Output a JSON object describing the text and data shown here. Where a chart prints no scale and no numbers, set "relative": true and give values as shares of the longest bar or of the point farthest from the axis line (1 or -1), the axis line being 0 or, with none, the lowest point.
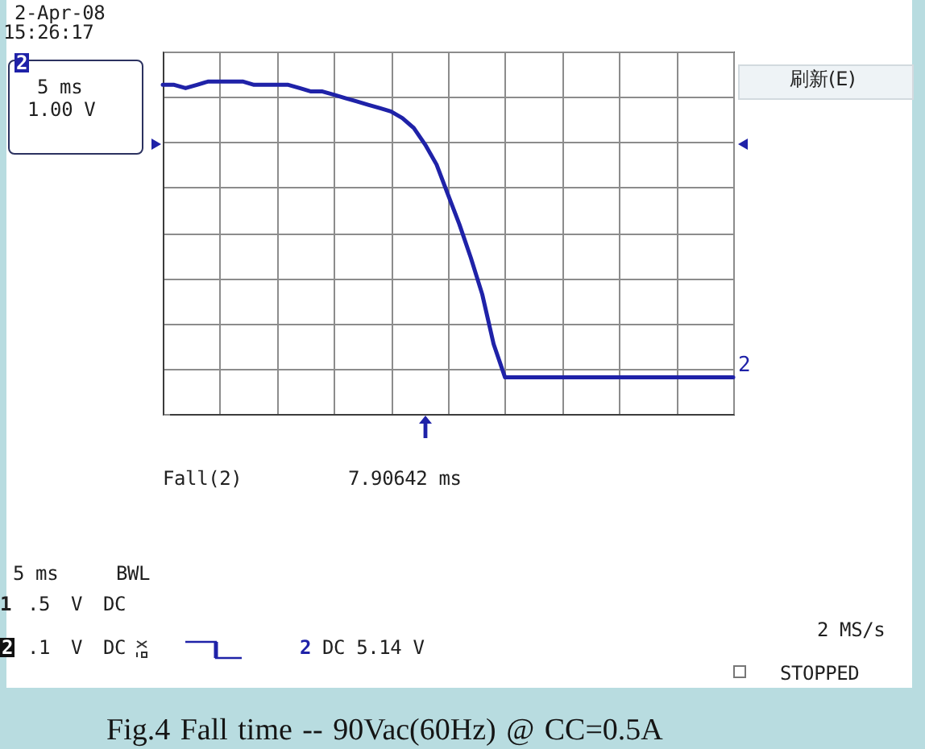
{
  "chart_data": {
    "type": "line",
    "relative": true,
    "categories": [
      null,
      null,
      null,
      null,
      null,
      null,
      null,
      null,
      null,
      null,
      null,
      null,
      null,
      null,
      null,
      null,
      null,
      null,
      null,
      null,
      null,
      null,
      null,
      null,
      null,
      null,
      null,
      null,
      null,
      null,
      null,
      null,
      null,
      null,
      null,
      null,
      null,
      null,
      null,
      null,
      null,
      null,
      null,
      null,
      null,
      null,
      null,
      null,
      null,
      null,
      null
    ],
    "series": [
      {
        "name": "2",
        "color": "#1f22a8",
        "values": [
          0.99,
          0.99,
          0.98,
          0.99,
          1,
          1,
          1,
          1,
          0.99,
          0.99,
          0.99,
          0.99,
          0.98,
          0.97,
          0.97,
          0.96,
          0.95,
          0.94,
          0.93,
          0.92,
          0.91,
          0.89,
          0.86,
          0.81,
          0.75,
          0.66,
          0.57,
          0.47,
          0.36,
          0.21,
          0.11,
          0.11,
          0.11,
          0.11,
          0.11,
          0.11,
          0.11,
          0.11,
          0.11,
          0.11,
          0.11,
          0.11,
          0.11,
          0.11,
          0.11,
          0.11,
          0.11,
          0.11,
          0.11,
          0.11,
          0.11
        ]
      }
    ],
    "grid": true,
    "annotations": [
      "2-Apr-08",
      "15:26:17",
      "2",
      "5 ms",
      "1.00 V",
      "刷新(E)",
      "Fall(2)",
      "7.90642 ms",
      "5 ms",
      "BWL",
      "1",
      ".5",
      "V",
      "DC",
      "2",
      ".1",
      "V",
      "DC",
      "2",
      "DC 5.14 V",
      "2 MS/s",
      "STOPPED",
      "Fig.4 Fall time -- 90Vac(60Hz) @ CC=0.5A"
    ]
  }
}
